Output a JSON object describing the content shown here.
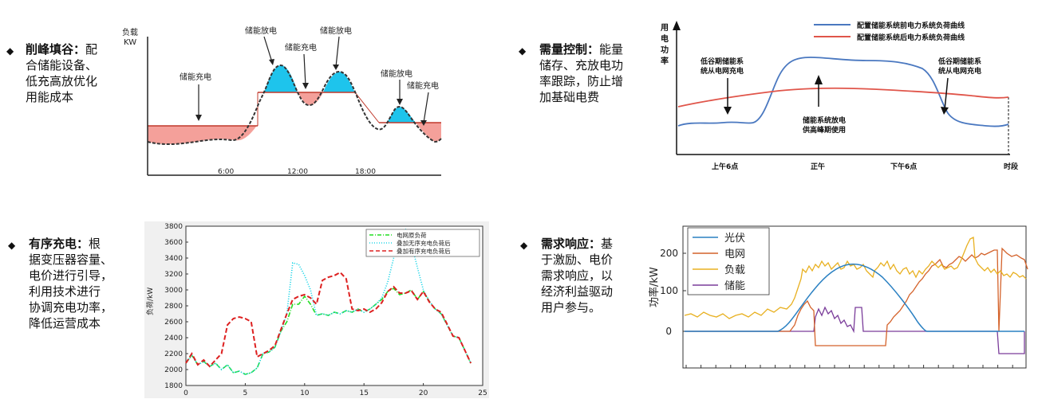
{
  "bullets": [
    {
      "title": "削峰填谷：",
      "lines": [
        "配",
        "合储能设备、",
        "低充高放优化",
        "用能成本"
      ]
    },
    {
      "title": "需量控制：",
      "lines": [
        "能量",
        "储存、充放电功",
        "率跟踪，防止增",
        "加基础电费"
      ]
    },
    {
      "title": "有序充电：",
      "lines": [
        "根",
        "据变压器容量、",
        "电价进行引导，",
        "利用技术进行",
        "协调充电功率，",
        "降低运营成本"
      ]
    },
    {
      "title": "需求响应：",
      "lines": [
        "基",
        "于激励、电价",
        "需求响应，以",
        "经济利益驱动",
        "用户参与。"
      ]
    }
  ],
  "chart_data": [
    {
      "type": "area",
      "ylabel": "负载 KW",
      "x_ticks": [
        "6:00",
        "12:00",
        "18:00"
      ],
      "annotations": [
        "储能充电",
        "储能放电",
        "储能充电",
        "储能放电",
        "储能放电",
        "储能充电"
      ],
      "colors": {
        "charge": "#f4a09a",
        "discharge": "#1ec4ec",
        "curve": "#333333"
      }
    },
    {
      "type": "line",
      "ylabel": "用电功率",
      "xlabel": "时段",
      "x_ticks": [
        "上午6点",
        "正午",
        "下午6点"
      ],
      "series": [
        {
          "name": "配置储能系统前电力系统负荷曲线",
          "color": "#4a78c0"
        },
        {
          "name": "配置储能系统后电力系统负荷曲线",
          "color": "#e0554a"
        }
      ],
      "annotations": [
        "低谷期储能系",
        "统从电网充电",
        "储能系统放电",
        "供高峰期使用",
        "低谷期储能系",
        "统从电网充电"
      ]
    },
    {
      "type": "line",
      "ylabel": "负荷/kW",
      "ylim": [
        1800,
        3800
      ],
      "y_ticks": [
        1800,
        2000,
        2200,
        2400,
        2600,
        2800,
        3000,
        3200,
        3400,
        3600,
        3800
      ],
      "xlim": [
        0,
        25
      ],
      "x_ticks": [
        0,
        5,
        10,
        15,
        20,
        25
      ],
      "series": [
        {
          "name": "电网原负荷",
          "color": "#22dd22",
          "style": "dash-dot",
          "x": [
            0,
            0.5,
            1,
            1.5,
            2,
            2.5,
            3,
            3.5,
            4,
            4.5,
            5,
            5.5,
            6,
            6.5,
            7,
            7.5,
            8,
            8.5,
            9,
            9.5,
            10,
            10.5,
            11,
            11.5,
            12,
            12.5,
            13,
            13.5,
            14,
            14.5,
            15,
            15.5,
            16,
            16.5,
            17,
            17.5,
            18,
            18.5,
            19,
            19.5,
            20,
            20.5,
            21,
            21.5,
            22,
            22.5,
            23,
            23.5,
            24
          ],
          "y": [
            2080,
            2180,
            2060,
            2100,
            2040,
            2080,
            2000,
            2060,
            1960,
            1980,
            1940,
            1960,
            2020,
            2200,
            2220,
            2280,
            2480,
            2600,
            2820,
            2820,
            2920,
            2820,
            2680,
            2700,
            2680,
            2720,
            2700,
            2740,
            2720,
            2760,
            2720,
            2760,
            2820,
            2880,
            2980,
            3020,
            2940,
            2960,
            3000,
            2880,
            2980,
            2860,
            2760,
            2700,
            2560,
            2420,
            2400,
            2240,
            2080
          ]
        },
        {
          "name": "叠加无序充电负荷后",
          "color": "#22d6e8",
          "style": "dotted",
          "x": [
            0,
            0.5,
            1,
            1.5,
            2,
            2.5,
            3,
            3.5,
            4,
            4.5,
            5,
            5.5,
            6,
            6.5,
            7,
            7.5,
            8,
            8.5,
            9,
            9.5,
            10,
            10.5,
            11,
            11.5,
            12,
            12.5,
            13,
            13.5,
            14,
            14.5,
            15,
            15.5,
            16,
            16.5,
            17,
            17.5,
            18,
            18.5,
            19,
            19.5,
            20,
            20.5,
            21,
            21.5,
            22,
            22.5,
            23,
            23.5,
            24
          ],
          "y": [
            2080,
            2180,
            2060,
            2100,
            2040,
            2080,
            2000,
            2060,
            1960,
            1980,
            1940,
            1960,
            2020,
            2200,
            2220,
            2280,
            2480,
            2700,
            3340,
            3320,
            3180,
            3000,
            2680,
            2700,
            2680,
            2720,
            2700,
            2740,
            2720,
            2760,
            2720,
            2760,
            2820,
            2900,
            3100,
            3400,
            3720,
            3760,
            3580,
            3280,
            3000,
            2860,
            2760,
            2700,
            2560,
            2420,
            2400,
            2240,
            2080
          ]
        },
        {
          "name": "叠加有序充电负荷后",
          "color": "#dd2020",
          "style": "dashed",
          "x": [
            0,
            0.5,
            1,
            1.5,
            2,
            2.5,
            3,
            3.5,
            4,
            4.5,
            5,
            5.5,
            6,
            6.5,
            7,
            7.5,
            8,
            8.5,
            9,
            9.5,
            10,
            10.5,
            11,
            11.5,
            12,
            12.5,
            13,
            13.5,
            14,
            14.5,
            15,
            15.5,
            16,
            16.5,
            17,
            17.5,
            18,
            18.5,
            19,
            19.5,
            20,
            20.5,
            21,
            21.5,
            22,
            22.5,
            23,
            23.5,
            24
          ],
          "y": [
            2080,
            2200,
            2060,
            2120,
            2040,
            2120,
            2200,
            2560,
            2640,
            2660,
            2640,
            2600,
            2160,
            2200,
            2240,
            2300,
            2500,
            2700,
            2880,
            2920,
            2940,
            2900,
            2820,
            3120,
            3160,
            3180,
            3220,
            3140,
            2760,
            2740,
            2760,
            2720,
            2760,
            2840,
            2980,
            3040,
            2960,
            2960,
            2990,
            2880,
            2980,
            2850,
            2760,
            2720,
            2570,
            2420,
            2400,
            2240,
            2080
          ]
        }
      ]
    },
    {
      "type": "line",
      "ylabel": "功率/kW",
      "y_ticks": [
        0,
        100,
        200
      ],
      "series": [
        {
          "name": "光伏",
          "color": "#2a80c2"
        },
        {
          "name": "电网",
          "color": "#d4622a"
        },
        {
          "name": "负载",
          "color": "#e8b020"
        },
        {
          "name": "储能",
          "color": "#7a3c9a"
        }
      ]
    }
  ]
}
